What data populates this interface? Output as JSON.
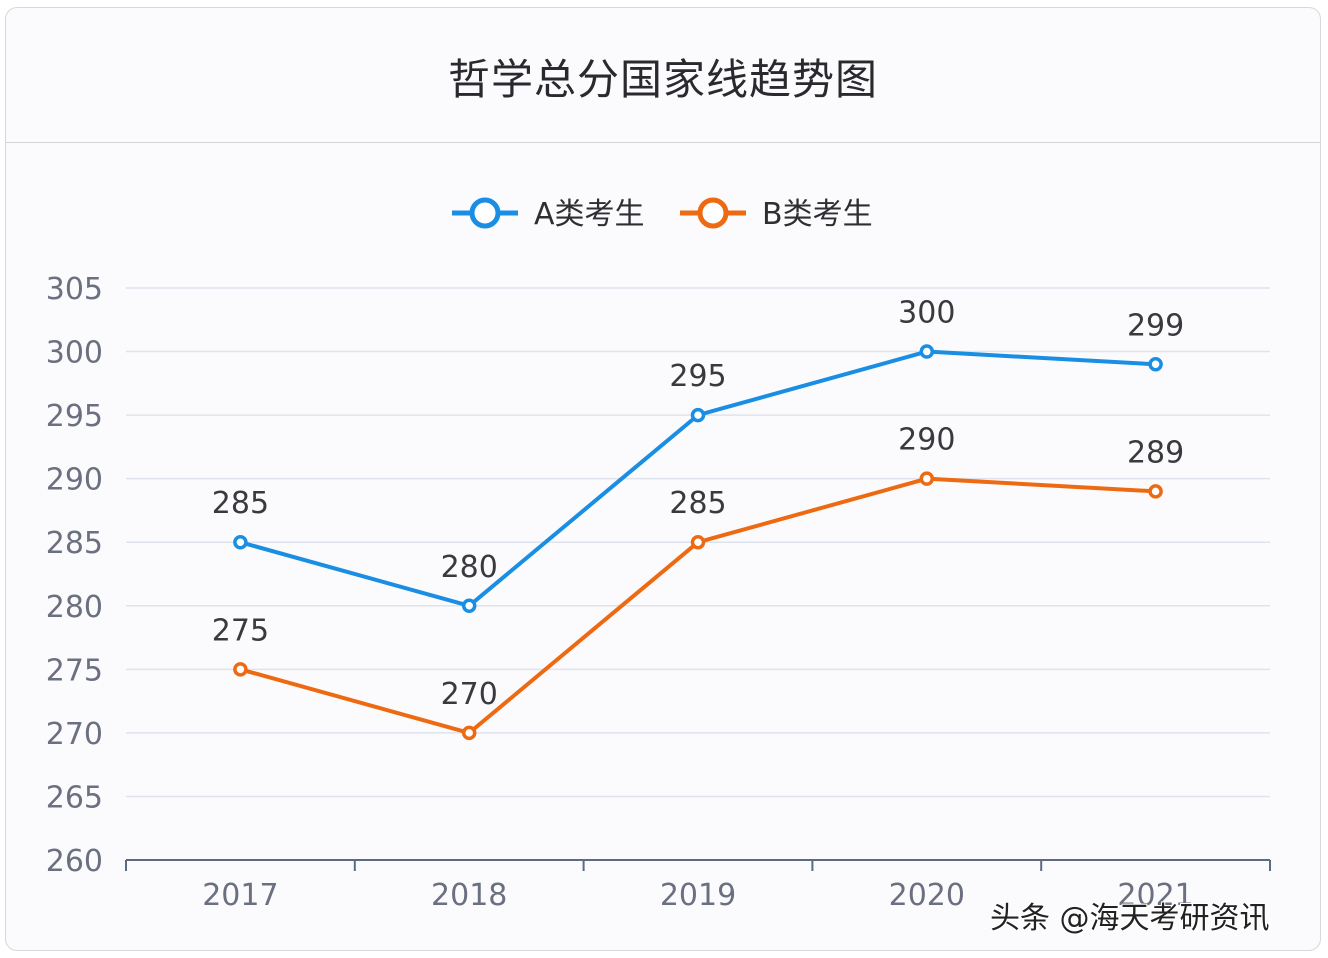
{
  "header": {
    "title": "哲学总分国家线趋势图"
  },
  "legend": [
    {
      "label": "A类考生",
      "color": "#1a8ee3"
    },
    {
      "label": "B类考生",
      "color": "#ee6a12"
    }
  ],
  "watermark": "头条 @海天考研资讯",
  "chart_data": {
    "type": "line",
    "title": "哲学总分国家线趋势图",
    "xlabel": "",
    "ylabel": "",
    "categories": [
      "2017",
      "2018",
      "2019",
      "2020",
      "2021"
    ],
    "series": [
      {
        "name": "A类考生",
        "color": "#1a8ee3",
        "values": [
          285,
          280,
          295,
          300,
          299
        ]
      },
      {
        "name": "B类考生",
        "color": "#ee6a12",
        "values": [
          275,
          270,
          285,
          290,
          289
        ]
      }
    ],
    "yticks": [
      260,
      265,
      270,
      275,
      280,
      285,
      290,
      295,
      300,
      305
    ],
    "ylim": [
      260,
      305
    ],
    "grid": true,
    "legend_position": "top",
    "data_labels": true
  }
}
